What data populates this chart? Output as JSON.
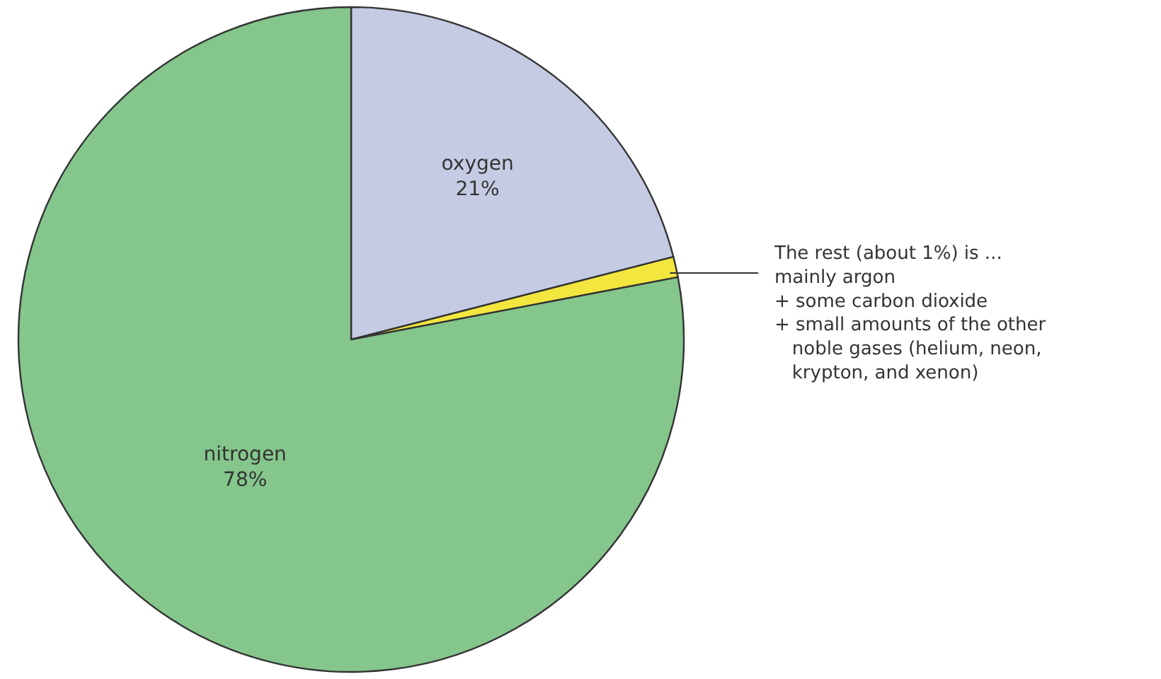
{
  "chart_data": {
    "type": "pie",
    "categories": [
      "oxygen",
      null,
      "nitrogen"
    ],
    "values": [
      21,
      1,
      78
    ],
    "value_labels": [
      "21%",
      null,
      "78%"
    ],
    "colors": [
      "#c5cbe3",
      "#f2e63f",
      "#84c68c"
    ],
    "annotations": [
      "The rest (about 1%) is ...\nmainly argon\n+ some carbon dioxide\n+ small amounts of the other\n   noble gases (helium, neon,\n   krypton, and xenon)"
    ]
  }
}
